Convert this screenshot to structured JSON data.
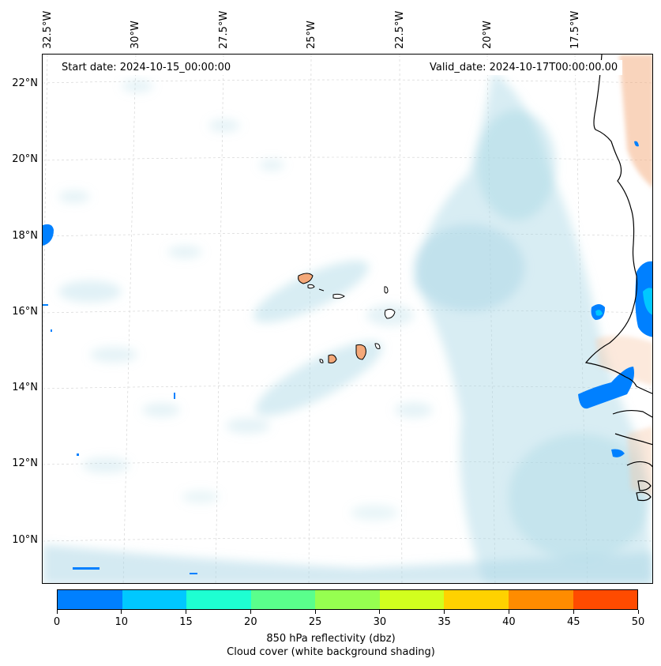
{
  "header": {
    "start_date": "Start date: 2024-10-15_00:00:00",
    "valid_date": "Valid_date: 2024-10-17T00:00:00.00"
  },
  "axes": {
    "lon_labels": [
      "32.5°W",
      "30°W",
      "27.5°W",
      "25°W",
      "22.5°W",
      "20°W",
      "17.5°W"
    ],
    "lat_labels": [
      "22°N",
      "20°N",
      "18°N",
      "16°N",
      "14°N",
      "12°N",
      "10°N"
    ]
  },
  "colorbar": {
    "ticks": [
      "0",
      "10",
      "15",
      "20",
      "25",
      "30",
      "35",
      "40",
      "45",
      "50"
    ],
    "colors": [
      "#0080ff",
      "#00c8ff",
      "#1effd2",
      "#5aff8c",
      "#96ff50",
      "#d2ff1e",
      "#ffd200",
      "#ff8c00",
      "#ff4b00"
    ],
    "label": "850 hPa reflectivity (dbz)",
    "sublabel": "Cloud cover (white background shading)"
  },
  "map": {
    "ocean_color": "#ffffff",
    "cloud_color": "#a9d6e5",
    "land_color": "#f4a97a",
    "coast_color": "#000000",
    "grid_color": "#c8c8c8"
  }
}
